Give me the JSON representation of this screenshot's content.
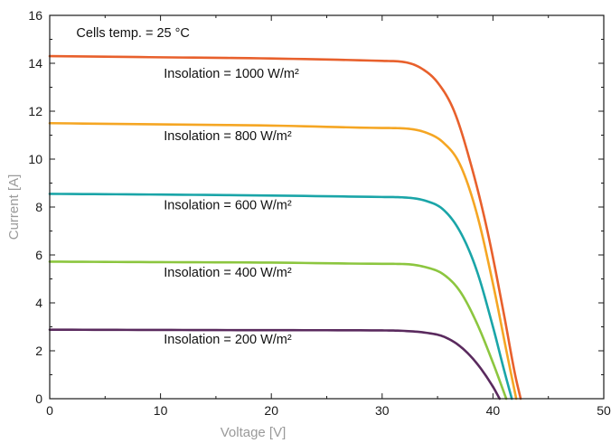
{
  "chart_data": {
    "type": "line",
    "title": "",
    "xlabel": "Voltage [V]",
    "ylabel": "Current [A]",
    "xlim": [
      0,
      50
    ],
    "ylim": [
      0,
      16
    ],
    "xticks": [
      0,
      10,
      20,
      30,
      40,
      50
    ],
    "yticks": [
      0,
      2,
      4,
      6,
      8,
      10,
      12,
      14,
      16
    ],
    "grid": false,
    "legend": "none",
    "annotations": [
      {
        "text": "Cells temp. = 25 °C",
        "x": 2.4,
        "y": 15.1
      },
      {
        "text": "Insolation = 1000 W/m²",
        "x": 10.3,
        "y": 13.4
      },
      {
        "text": "Insolation = 800 W/m²",
        "x": 10.3,
        "y": 10.8
      },
      {
        "text": "Insolation = 600 W/m²",
        "x": 10.3,
        "y": 7.9
      },
      {
        "text": "Insolation = 400 W/m²",
        "x": 10.3,
        "y": 5.1
      },
      {
        "text": "Insolation = 200 W/m²",
        "x": 10.3,
        "y": 2.3
      }
    ],
    "series": [
      {
        "color": "#e8602c",
        "x": [
          0,
          10,
          20,
          30,
          32,
          33.5,
          35,
          36.5,
          38,
          39.5,
          41,
          42,
          42.5
        ],
        "y": [
          14.3,
          14.25,
          14.2,
          14.1,
          14.05,
          13.8,
          13.2,
          12.0,
          9.8,
          7.0,
          3.5,
          1.0,
          0
        ]
      },
      {
        "color": "#f5a623",
        "x": [
          0,
          10,
          20,
          30,
          32,
          34,
          35.5,
          37,
          38.5,
          40,
          41.3,
          42.1
        ],
        "y": [
          11.5,
          11.45,
          11.4,
          11.3,
          11.28,
          11.1,
          10.7,
          9.8,
          7.8,
          4.8,
          1.8,
          0
        ]
      },
      {
        "color": "#1aa5a8",
        "x": [
          0,
          10,
          20,
          30,
          32,
          34,
          35.5,
          37,
          38.5,
          40,
          41,
          41.7
        ],
        "y": [
          8.55,
          8.52,
          8.48,
          8.42,
          8.4,
          8.25,
          7.9,
          7.0,
          5.4,
          3.0,
          1.2,
          0
        ]
      },
      {
        "color": "#8cc63f",
        "x": [
          0,
          10,
          20,
          30,
          32,
          34,
          35.5,
          37,
          38.5,
          40,
          41.2
        ],
        "y": [
          5.72,
          5.7,
          5.68,
          5.63,
          5.62,
          5.48,
          5.2,
          4.5,
          3.2,
          1.5,
          0
        ]
      },
      {
        "color": "#5a2a5e",
        "x": [
          0,
          10,
          20,
          30,
          32,
          34,
          35.5,
          37,
          38.5,
          40,
          40.6
        ],
        "y": [
          2.88,
          2.87,
          2.86,
          2.85,
          2.83,
          2.75,
          2.6,
          2.2,
          1.5,
          0.5,
          0
        ]
      }
    ]
  }
}
